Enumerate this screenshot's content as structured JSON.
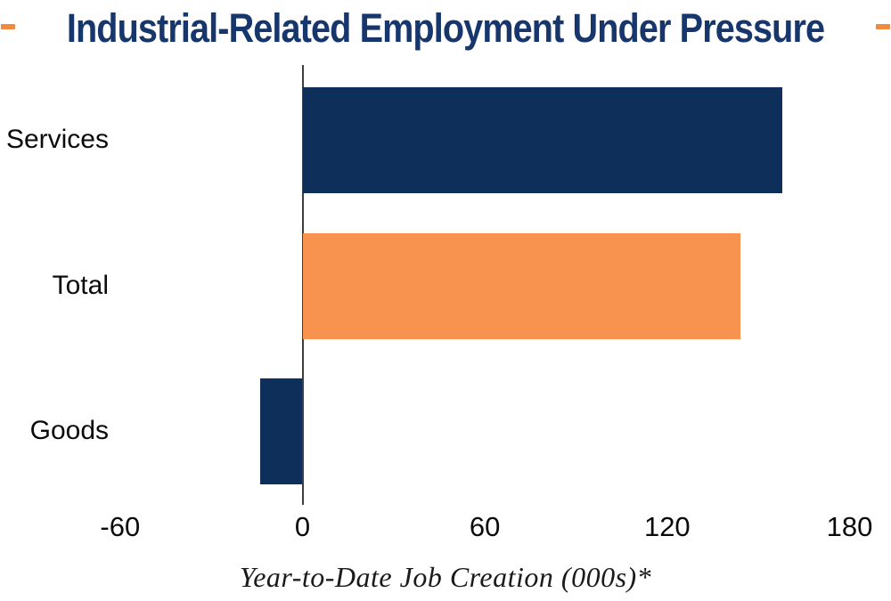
{
  "title": "Industrial-Related Employment Under Pressure",
  "accent": {
    "title_color": "#17376C",
    "dash_orange": "#F28A3E",
    "navy": "#0E2F5A",
    "orange": "#F7934E",
    "axis_line": "#3F3F3F"
  },
  "chart_data": {
    "type": "bar",
    "orientation": "horizontal",
    "title": "Industrial-Related Employment Under Pressure",
    "xlabel": "Year-to-Date Job Creation (000s)*",
    "ylabel": "",
    "categories": [
      "Services",
      "Total",
      "Goods"
    ],
    "values": [
      158,
      144,
      -14
    ],
    "bar_colors": [
      "#0E2F5A",
      "#F7934E",
      "#0E2F5A"
    ],
    "xticks": [
      -60,
      0,
      60,
      120,
      180
    ],
    "xlim": [
      -100,
      194
    ],
    "grid": false,
    "legend": false
  }
}
